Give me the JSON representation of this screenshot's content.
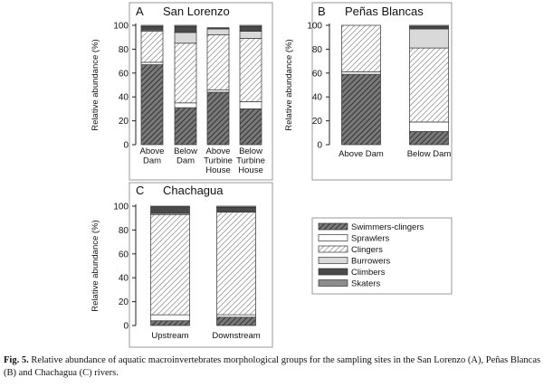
{
  "legend": {
    "items": [
      {
        "label": "Swimmers-clingers",
        "style": "dark-hatch"
      },
      {
        "label": "Sprawlers",
        "style": "white"
      },
      {
        "label": "Clingers",
        "style": "light-hatch"
      },
      {
        "label": "Burrowers",
        "style": "light-gray"
      },
      {
        "label": "Climbers",
        "style": "dark"
      },
      {
        "label": "Skaters",
        "style": "gray"
      }
    ]
  },
  "caption": {
    "label": "Fig. 5.",
    "text": " Relative abundance of aquatic macroinvertebrates morphological groups for the sampling sites in the San Lorenzo (A), Peñas Blancas (B) and Chachagua (C) rivers."
  },
  "colors": {
    "swimmers_clingers": "#7a7a7a",
    "sprawlers": "#ffffff",
    "clingers": "#ffffff",
    "burrowers": "#d9d9d9",
    "climbers": "#4a4a4a",
    "skaters": "#8c8c8c"
  },
  "chart_data": [
    {
      "panel": "A",
      "title": "San Lorenzo",
      "type": "bar",
      "stacked": true,
      "ylabel": "Relative abundance (%)",
      "ylim": [
        0,
        100
      ],
      "yticks": [
        0,
        20,
        40,
        60,
        80,
        100
      ],
      "categories": [
        [
          "Above",
          "Dam"
        ],
        [
          "Below",
          "Dam"
        ],
        [
          "Above",
          "Turbine",
          "House"
        ],
        [
          "Below",
          "Turbine",
          "House"
        ]
      ],
      "series": [
        {
          "name": "Swimmers-clingers",
          "values": [
            67,
            31,
            44,
            30
          ]
        },
        {
          "name": "Sprawlers",
          "values": [
            2,
            4,
            2,
            6
          ]
        },
        {
          "name": "Clingers",
          "values": [
            26,
            50,
            46,
            53
          ]
        },
        {
          "name": "Burrowers",
          "values": [
            1,
            9,
            5,
            6
          ]
        },
        {
          "name": "Climbers",
          "values": [
            3,
            5,
            1,
            4
          ]
        },
        {
          "name": "Skaters",
          "values": [
            1,
            1,
            0,
            1
          ]
        }
      ]
    },
    {
      "panel": "B",
      "title": "Peñas Blancas",
      "type": "bar",
      "stacked": true,
      "ylabel": "Relative abundance (%)",
      "ylim": [
        0,
        100
      ],
      "yticks": [
        0,
        20,
        40,
        60,
        80,
        100
      ],
      "categories": [
        [
          "Above Dam"
        ],
        [
          "Below Dam"
        ]
      ],
      "series": [
        {
          "name": "Swimmers-clingers",
          "values": [
            59,
            11
          ]
        },
        {
          "name": "Sprawlers",
          "values": [
            2,
            8
          ]
        },
        {
          "name": "Clingers",
          "values": [
            39,
            62
          ]
        },
        {
          "name": "Burrowers",
          "values": [
            0,
            16
          ]
        },
        {
          "name": "Climbers",
          "values": [
            0,
            2
          ]
        },
        {
          "name": "Skaters",
          "values": [
            0,
            1
          ]
        }
      ]
    },
    {
      "panel": "C",
      "title": "Chachagua",
      "type": "bar",
      "stacked": true,
      "ylabel": "Relative abundance (%)",
      "ylim": [
        0,
        100
      ],
      "yticks": [
        0,
        20,
        40,
        60,
        80,
        100
      ],
      "categories": [
        [
          "Upstream"
        ],
        [
          "Downstream"
        ]
      ],
      "series": [
        {
          "name": "Swimmers-clingers",
          "values": [
            4,
            7
          ]
        },
        {
          "name": "Sprawlers",
          "values": [
            5,
            2
          ]
        },
        {
          "name": "Clingers",
          "values": [
            84,
            86
          ]
        },
        {
          "name": "Burrowers",
          "values": [
            1,
            0
          ]
        },
        {
          "name": "Climbers",
          "values": [
            6,
            4
          ]
        },
        {
          "name": "Skaters",
          "values": [
            0,
            1
          ]
        }
      ]
    }
  ]
}
